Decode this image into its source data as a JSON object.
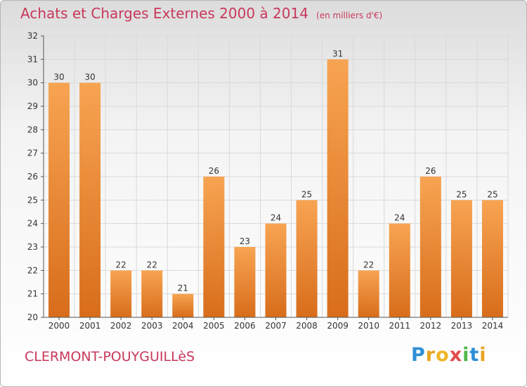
{
  "chart_data": {
    "type": "bar",
    "title": "Achats et Charges Externes 2000 à 2014",
    "subtitle": "(en milliers d'€)",
    "categories": [
      "2000",
      "2001",
      "2002",
      "2003",
      "2004",
      "2005",
      "2006",
      "2007",
      "2008",
      "2009",
      "2010",
      "2011",
      "2012",
      "2013",
      "2014"
    ],
    "values": [
      30,
      30,
      22,
      22,
      21,
      26,
      23,
      24,
      25,
      31,
      22,
      24,
      26,
      25,
      25
    ],
    "ylim": [
      20,
      32
    ],
    "yticks": [
      "20",
      "21",
      "22",
      "23",
      "24",
      "25",
      "26",
      "27",
      "28",
      "29",
      "30",
      "31",
      "32"
    ],
    "grid": true,
    "legend": "none",
    "bar_color_top": "#f7a452",
    "bar_color_bottom": "#d86d1b"
  },
  "place": "CLERMONT-POUYGUILLèS",
  "logo": {
    "letters": [
      "P",
      "r",
      "o",
      "x",
      "i",
      "t",
      "i"
    ],
    "colors": [
      "#2f8fd6",
      "#e8a423",
      "#f0b627",
      "#e24b4b",
      "#4fb848",
      "#2f8fd6",
      "#e8a423"
    ]
  },
  "colors": {
    "title": "#c8385a",
    "grid": "#d9d9d9",
    "axis": "#555555"
  }
}
